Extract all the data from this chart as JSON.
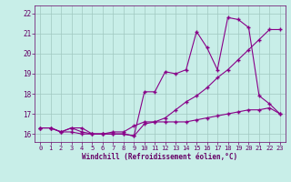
{
  "line1_x": [
    0,
    1,
    2,
    3,
    4,
    5,
    6,
    7,
    8,
    9,
    10,
    11,
    12,
    13,
    14,
    15,
    16,
    17,
    18,
    19,
    20,
    21,
    22,
    23
  ],
  "line1_y": [
    16.3,
    16.3,
    16.1,
    16.3,
    16.1,
    16.0,
    16.0,
    16.0,
    16.0,
    15.9,
    16.5,
    16.6,
    16.6,
    16.6,
    16.6,
    16.7,
    16.8,
    16.9,
    17.0,
    17.1,
    17.2,
    17.2,
    17.3,
    17.0
  ],
  "line2_x": [
    0,
    1,
    2,
    3,
    4,
    5,
    6,
    7,
    8,
    9,
    10,
    11,
    12,
    13,
    14,
    15,
    16,
    17,
    18,
    19,
    20,
    21,
    22,
    23
  ],
  "line2_y": [
    16.3,
    16.3,
    16.1,
    16.3,
    16.3,
    16.0,
    16.0,
    16.1,
    16.1,
    16.4,
    16.6,
    16.6,
    16.8,
    17.2,
    17.6,
    17.9,
    18.3,
    18.8,
    19.2,
    19.7,
    20.2,
    20.7,
    21.2,
    21.2
  ],
  "line3_x": [
    0,
    1,
    2,
    3,
    4,
    5,
    6,
    7,
    8,
    9,
    10,
    11,
    12,
    13,
    14,
    15,
    16,
    17,
    18,
    19,
    20,
    21,
    22,
    23
  ],
  "line3_y": [
    16.3,
    16.3,
    16.1,
    16.1,
    16.0,
    16.0,
    16.0,
    16.0,
    16.0,
    15.9,
    18.1,
    18.1,
    19.1,
    19.0,
    19.2,
    21.1,
    20.3,
    19.2,
    21.8,
    21.7,
    21.3,
    17.9,
    17.5,
    17.0
  ],
  "line_color": "#880088",
  "marker": "+",
  "linewidth": 0.8,
  "markersize": 3,
  "bg_color": "#c8eee8",
  "grid_color": "#a0c8c0",
  "xlabel": "Windchill (Refroidissement éolien,°C)",
  "xlim": [
    -0.5,
    23.5
  ],
  "ylim": [
    15.6,
    22.4
  ],
  "yticks": [
    16,
    17,
    18,
    19,
    20,
    21,
    22
  ],
  "xticks": [
    0,
    1,
    2,
    3,
    4,
    5,
    6,
    7,
    8,
    9,
    10,
    11,
    12,
    13,
    14,
    15,
    16,
    17,
    18,
    19,
    20,
    21,
    22,
    23
  ],
  "xlabel_color": "#660066",
  "tick_color": "#660066",
  "label_fontsize": 5.0,
  "xlabel_fontsize": 5.5
}
